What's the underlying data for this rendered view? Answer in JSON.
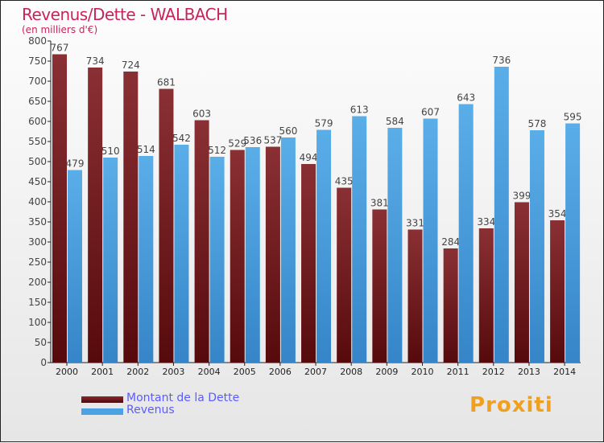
{
  "chart_data": {
    "type": "bar",
    "title": "Revenus/Dette - WALBACH",
    "subtitle": "(en milliers d'€)",
    "categories": [
      "2000",
      "2001",
      "2002",
      "2003",
      "2004",
      "2005",
      "2006",
      "2007",
      "2008",
      "2009",
      "2010",
      "2011",
      "2012",
      "2013",
      "2014"
    ],
    "series": [
      {
        "name": "Montant de la Dette",
        "color": "#7a1f22",
        "values": [
          767,
          734,
          724,
          681,
          603,
          529,
          537,
          494,
          435,
          381,
          331,
          284,
          334,
          399,
          354
        ]
      },
      {
        "name": "Revenus",
        "color": "#4ba3e3",
        "values": [
          479,
          510,
          514,
          542,
          512,
          536,
          560,
          579,
          613,
          584,
          607,
          643,
          736,
          578,
          595
        ]
      }
    ],
    "ylim": [
      0,
      800
    ],
    "yticks": [
      0,
      50,
      100,
      150,
      200,
      250,
      300,
      350,
      400,
      450,
      500,
      550,
      600,
      650,
      700,
      750,
      800
    ],
    "legend": "bottom-left"
  },
  "logo": "Proxiti"
}
